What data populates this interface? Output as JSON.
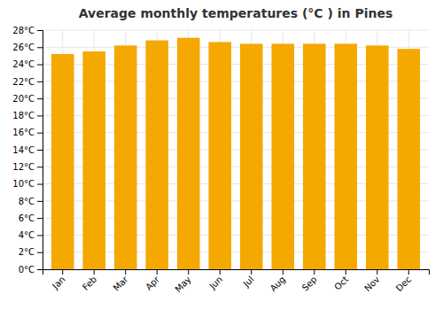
{
  "chart_data": {
    "type": "bar",
    "title": "Average monthly temperatures (°C ) in Pines",
    "categories": [
      "Jan",
      "Feb",
      "Mar",
      "Apr",
      "May",
      "Jun",
      "Jul",
      "Aug",
      "Sep",
      "Oct",
      "Nov",
      "Dec"
    ],
    "values": [
      25.2,
      25.5,
      26.2,
      26.8,
      27.1,
      26.6,
      26.4,
      26.4,
      26.4,
      26.4,
      26.2,
      25.8
    ],
    "color": "#F5A800",
    "ylim": [
      0,
      28
    ],
    "yticks": [
      {
        "value": 0,
        "label": "0°C"
      },
      {
        "value": 2,
        "label": "2°C"
      },
      {
        "value": 4,
        "label": "4°C"
      },
      {
        "value": 6,
        "label": "6°C"
      },
      {
        "value": 8,
        "label": "8°C"
      },
      {
        "value": 10,
        "label": "10°C"
      },
      {
        "value": 12,
        "label": "12°C"
      },
      {
        "value": 14,
        "label": "14°C"
      },
      {
        "value": 16,
        "label": "16°C"
      },
      {
        "value": 18,
        "label": "18°C"
      },
      {
        "value": 20,
        "label": "20°C"
      },
      {
        "value": 22,
        "label": "22°C"
      },
      {
        "value": 24,
        "label": "24°C"
      },
      {
        "value": 26,
        "label": "26°C"
      },
      {
        "value": 28,
        "label": "28°C"
      }
    ],
    "grid": true
  }
}
